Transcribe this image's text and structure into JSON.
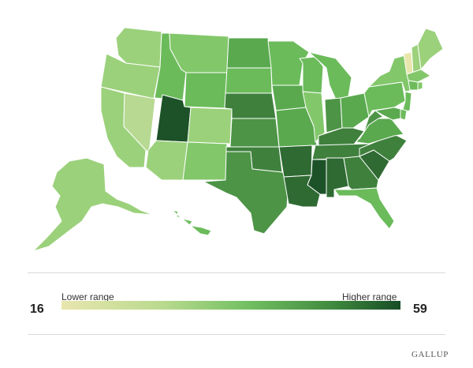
{
  "legend": {
    "min_label": "Lower range",
    "max_label": "Higher range",
    "min_value": "16",
    "max_value": "59",
    "color_low": "#e8e6ad",
    "color_high": "#174d27"
  },
  "brand": "GALLUP",
  "colors": {
    "c1": "#e8e6ad",
    "c2": "#b7d992",
    "c3": "#9bd17b",
    "c4": "#83c76b",
    "c5": "#6bbb5b",
    "c6": "#5aa94f",
    "c7": "#4d9446",
    "c8": "#3f803d",
    "c9": "#2f6a33",
    "c10": "#1d5228"
  },
  "states": [
    {
      "id": "WA",
      "c": "c3"
    },
    {
      "id": "OR",
      "c": "c3"
    },
    {
      "id": "CA",
      "c": "c3"
    },
    {
      "id": "NV",
      "c": "c2"
    },
    {
      "id": "ID",
      "c": "c5"
    },
    {
      "id": "MT",
      "c": "c4"
    },
    {
      "id": "WY",
      "c": "c5"
    },
    {
      "id": "UT",
      "c": "c10"
    },
    {
      "id": "AZ",
      "c": "c3"
    },
    {
      "id": "CO",
      "c": "c3"
    },
    {
      "id": "NM",
      "c": "c4"
    },
    {
      "id": "ND",
      "c": "c6"
    },
    {
      "id": "SD",
      "c": "c5"
    },
    {
      "id": "NE",
      "c": "c8"
    },
    {
      "id": "KS",
      "c": "c7"
    },
    {
      "id": "OK",
      "c": "c8"
    },
    {
      "id": "TX",
      "c": "c7"
    },
    {
      "id": "MN",
      "c": "c5"
    },
    {
      "id": "IA",
      "c": "c6"
    },
    {
      "id": "MO",
      "c": "c6"
    },
    {
      "id": "AR",
      "c": "c9"
    },
    {
      "id": "LA",
      "c": "c9"
    },
    {
      "id": "WI",
      "c": "c5"
    },
    {
      "id": "IL",
      "c": "c4"
    },
    {
      "id": "MI",
      "c": "c5"
    },
    {
      "id": "IN",
      "c": "c7"
    },
    {
      "id": "OH",
      "c": "c6"
    },
    {
      "id": "KY",
      "c": "c8"
    },
    {
      "id": "TN",
      "c": "c8"
    },
    {
      "id": "MS",
      "c": "c10"
    },
    {
      "id": "AL",
      "c": "c9"
    },
    {
      "id": "GA",
      "c": "c8"
    },
    {
      "id": "FL",
      "c": "c5"
    },
    {
      "id": "SC",
      "c": "c9"
    },
    {
      "id": "NC",
      "c": "c8"
    },
    {
      "id": "VA",
      "c": "c6"
    },
    {
      "id": "WV",
      "c": "c7"
    },
    {
      "id": "PA",
      "c": "c5"
    },
    {
      "id": "NY",
      "c": "c4"
    },
    {
      "id": "VT",
      "c": "c1"
    },
    {
      "id": "NH",
      "c": "c3"
    },
    {
      "id": "ME",
      "c": "c3"
    },
    {
      "id": "MA",
      "c": "c4"
    },
    {
      "id": "CT",
      "c": "c5"
    },
    {
      "id": "RI",
      "c": "c4"
    },
    {
      "id": "NJ",
      "c": "c5"
    },
    {
      "id": "DE",
      "c": "c5"
    },
    {
      "id": "MD",
      "c": "c6"
    },
    {
      "id": "AK",
      "c": "c3"
    },
    {
      "id": "HI",
      "c": "c5"
    }
  ]
}
